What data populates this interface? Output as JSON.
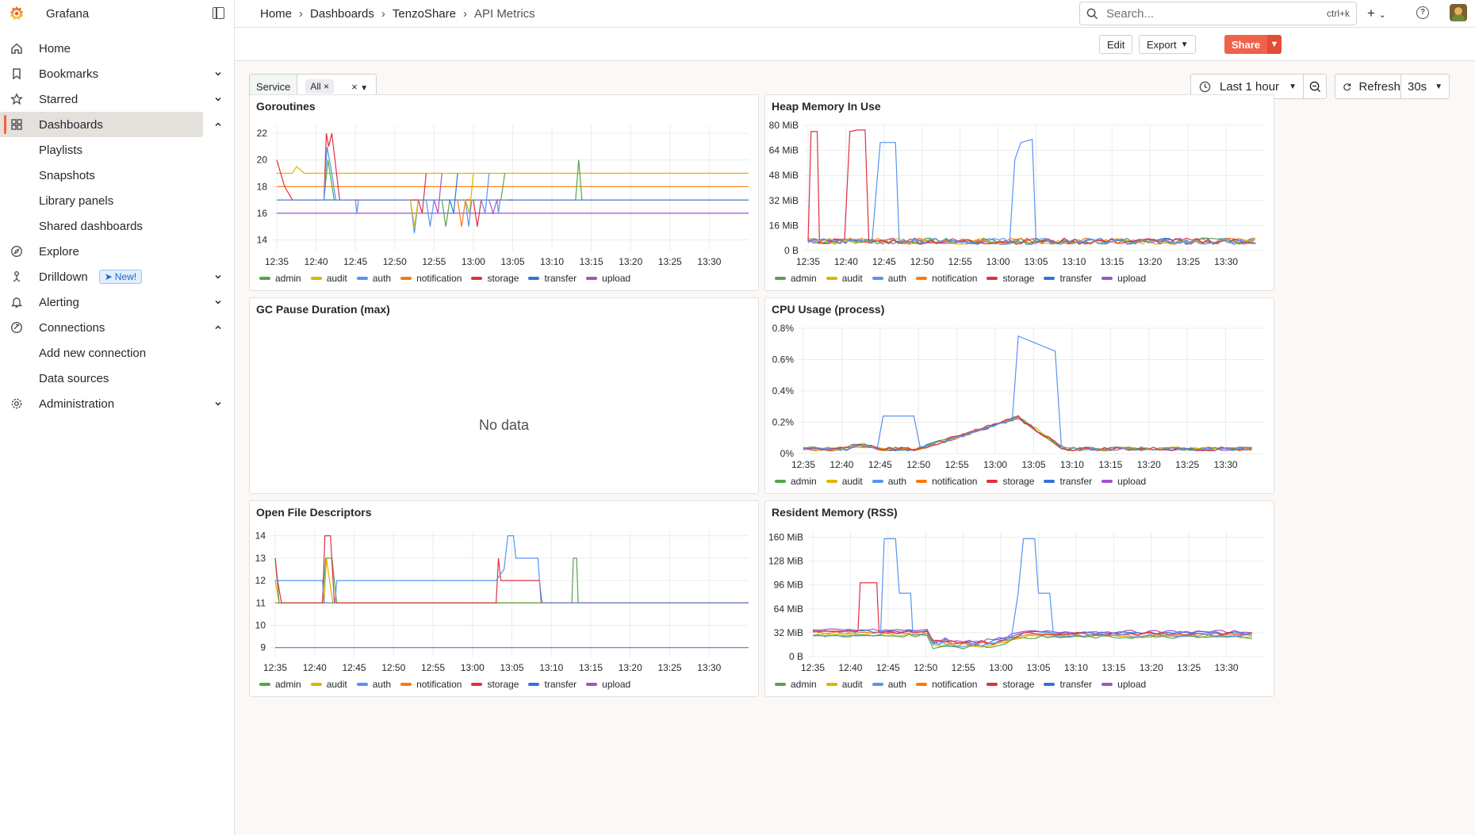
{
  "app": {
    "name": "Grafana"
  },
  "sidebar": {
    "items": [
      {
        "label": "Home",
        "icon": "home-icon"
      },
      {
        "label": "Bookmarks",
        "icon": "bookmark-icon",
        "chevron": "down"
      },
      {
        "label": "Starred",
        "icon": "star-icon",
        "chevron": "down"
      },
      {
        "label": "Dashboards",
        "icon": "apps-icon",
        "chevron": "up",
        "active": true
      },
      {
        "label": "Playlists",
        "sub": true
      },
      {
        "label": "Snapshots",
        "sub": true
      },
      {
        "label": "Library panels",
        "sub": true
      },
      {
        "label": "Shared dashboards",
        "sub": true
      },
      {
        "label": "Explore",
        "icon": "compass-icon"
      },
      {
        "label": "Drilldown",
        "icon": "drilldown-icon",
        "chevron": "down",
        "badge": "New!"
      },
      {
        "label": "Alerting",
        "icon": "bell-icon",
        "chevron": "down"
      },
      {
        "label": "Connections",
        "icon": "link-icon",
        "chevron": "up"
      },
      {
        "label": "Add new connection",
        "sub": true
      },
      {
        "label": "Data sources",
        "sub": true
      },
      {
        "label": "Administration",
        "icon": "gear-icon",
        "chevron": "down"
      }
    ]
  },
  "topbar": {
    "breadcrumb": [
      "Home",
      "Dashboards",
      "TenzoShare",
      "API Metrics"
    ],
    "search_placeholder": "Search...",
    "search_shortcut": "ctrl+k"
  },
  "toolbar": {
    "edit": "Edit",
    "export": "Export",
    "share": "Share"
  },
  "variables": {
    "label": "Service",
    "value": "All"
  },
  "timepicker": {
    "range": "Last 1 hour",
    "refresh": "Refresh",
    "interval": "30s"
  },
  "colors": {
    "accent": "#f55f3e",
    "series": {
      "admin": "#56a64b",
      "audit": "#e0b400",
      "auth": "#5794f2",
      "notification": "#ff780a",
      "storage": "#e02f44",
      "transfer": "#3274d9",
      "upload": "#a352cc"
    }
  },
  "legend": [
    "admin",
    "audit",
    "auth",
    "notification",
    "storage",
    "transfer",
    "upload"
  ],
  "x_ticks": [
    "12:35",
    "12:40",
    "12:45",
    "12:50",
    "12:55",
    "13:00",
    "13:05",
    "13:10",
    "13:15",
    "13:20",
    "13:25",
    "13:30"
  ],
  "panels": [
    {
      "title": "Goroutines",
      "y_ticks": [
        "14",
        "16",
        "18",
        "20",
        "22"
      ],
      "ymin": 13.2,
      "ymax": 22.6,
      "series": {
        "audit": [
          [
            0,
            19
          ],
          [
            2,
            19
          ],
          [
            2.5,
            19.5
          ],
          [
            3.5,
            19
          ],
          [
            60,
            19
          ]
        ],
        "notification": [
          [
            0,
            18
          ],
          [
            60,
            18
          ]
        ],
        "transfer": [
          [
            0,
            17
          ],
          [
            60,
            17
          ]
        ],
        "upload": [
          [
            0,
            16
          ],
          [
            60,
            16
          ]
        ],
        "storage": [
          [
            0,
            20
          ],
          [
            1,
            18
          ],
          [
            2,
            17
          ],
          [
            6,
            17
          ],
          [
            6.3,
            22
          ],
          [
            6.6,
            21
          ],
          [
            7,
            22
          ],
          [
            7.4,
            20
          ],
          [
            8,
            17
          ],
          [
            60,
            17
          ]
        ],
        "auth": [
          [
            0,
            17
          ],
          [
            6,
            17
          ],
          [
            6.4,
            21
          ],
          [
            7,
            19
          ],
          [
            7.5,
            17
          ],
          [
            10,
            17
          ],
          [
            10.2,
            16
          ],
          [
            10.4,
            17
          ],
          [
            17,
            17
          ],
          [
            17.5,
            14.5
          ],
          [
            18,
            17
          ],
          [
            24,
            17
          ],
          [
            24.4,
            15
          ],
          [
            24.8,
            17
          ],
          [
            28,
            17
          ],
          [
            28.2,
            16
          ],
          [
            28.4,
            17
          ],
          [
            60,
            17
          ]
        ],
        "admin": [
          [
            0,
            17
          ],
          [
            6,
            17
          ],
          [
            6.5,
            20
          ],
          [
            7.3,
            17
          ],
          [
            38,
            17
          ],
          [
            38.4,
            20
          ],
          [
            38.8,
            17
          ],
          [
            60,
            17
          ]
        ]
      },
      "spikes": [
        [
          17,
          18,
          15
        ],
        [
          18,
          19,
          16
        ],
        [
          19,
          20,
          15
        ],
        [
          20,
          21,
          16
        ],
        [
          21,
          22,
          15
        ],
        [
          22,
          23,
          16
        ],
        [
          23,
          24,
          15
        ],
        [
          24,
          25,
          16
        ],
        [
          25,
          26,
          15
        ],
        [
          26,
          27,
          16
        ],
        [
          27,
          28,
          16
        ],
        [
          28.5,
          29,
          18
        ],
        [
          29.5,
          30,
          17
        ]
      ]
    },
    {
      "title": "Heap Memory In Use",
      "y_ticks": [
        "0 B",
        "16 MiB",
        "32 MiB",
        "48 MiB",
        "64 MiB",
        "80 MiB"
      ],
      "ymin": 0,
      "ymax": 80,
      "unit": "MiB"
    },
    {
      "title": "GC Pause Duration (max)",
      "no_data": "No data"
    },
    {
      "title": "CPU Usage (process)",
      "y_ticks": [
        "0%",
        "0.2%",
        "0.4%",
        "0.6%",
        "0.8%"
      ],
      "ymin": 0,
      "ymax": 0.8,
      "unit": "%"
    },
    {
      "title": "Open File Descriptors",
      "y_ticks": [
        "9",
        "10",
        "11",
        "12",
        "13",
        "14"
      ],
      "ymin": 8.6,
      "ymax": 14.2,
      "series": {
        "upload": [
          [
            0,
            9
          ],
          [
            60,
            9
          ]
        ],
        "transfer": [
          [
            0,
            11
          ],
          [
            60,
            11
          ]
        ],
        "auth": [
          [
            0,
            12
          ],
          [
            6,
            12
          ],
          [
            6.2,
            11
          ],
          [
            7.6,
            11
          ],
          [
            7.8,
            12
          ],
          [
            28,
            12
          ],
          [
            29,
            12.5
          ],
          [
            29.5,
            14
          ],
          [
            30.2,
            14
          ],
          [
            30.5,
            13
          ],
          [
            33.3,
            13
          ],
          [
            33.7,
            11
          ],
          [
            60,
            11
          ]
        ],
        "storage": [
          [
            0,
            13
          ],
          [
            0.3,
            12
          ],
          [
            0.8,
            11
          ],
          [
            6,
            11
          ],
          [
            6.3,
            14
          ],
          [
            7,
            14
          ],
          [
            7.5,
            11
          ],
          [
            28,
            11
          ],
          [
            28.3,
            13
          ],
          [
            28.6,
            12
          ],
          [
            33.5,
            12
          ],
          [
            33.8,
            11
          ],
          [
            60,
            11
          ]
        ],
        "admin": [
          [
            0,
            13
          ],
          [
            0.5,
            11
          ],
          [
            6,
            11
          ],
          [
            6.4,
            13
          ],
          [
            7.2,
            13
          ],
          [
            7.8,
            11
          ],
          [
            37.6,
            11
          ],
          [
            37.8,
            13
          ],
          [
            38.2,
            13
          ],
          [
            38.4,
            11
          ],
          [
            60,
            11
          ]
        ],
        "audit": [
          [
            0,
            12
          ],
          [
            0.5,
            11
          ],
          [
            6.2,
            11
          ],
          [
            6.5,
            13
          ],
          [
            7.3,
            11
          ],
          [
            60,
            11
          ]
        ],
        "notification": [
          [
            0,
            11
          ],
          [
            60,
            11
          ]
        ]
      }
    },
    {
      "title": "Resident Memory (RSS)",
      "y_ticks": [
        "0 B",
        "32 MiB",
        "64 MiB",
        "96 MiB",
        "128 MiB",
        "160 MiB"
      ],
      "ymin": 0,
      "ymax": 168,
      "unit": "MiB"
    }
  ]
}
